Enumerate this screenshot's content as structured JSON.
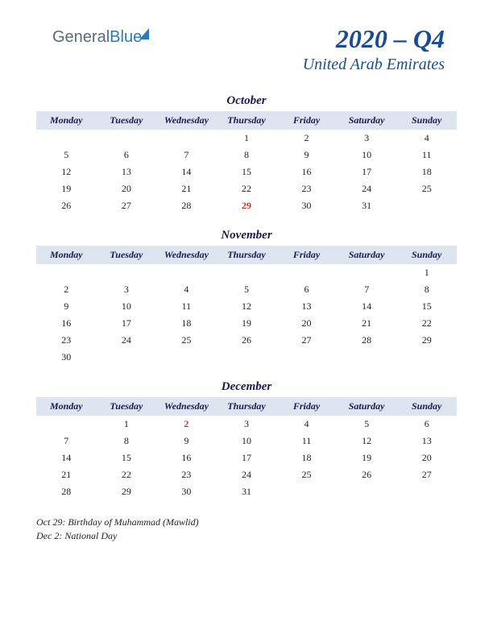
{
  "logo": {
    "part1": "General",
    "part2": "Blue"
  },
  "header": {
    "title": "2020 – Q4",
    "subtitle": "United Arab Emirates"
  },
  "colors": {
    "header_text": "#1a4d8f",
    "th_bg": "#dde5f0",
    "holiday": "#c0392b",
    "body_text": "#222222",
    "background": "#ffffff"
  },
  "weekdays": [
    "Monday",
    "Tuesday",
    "Wednesday",
    "Thursday",
    "Friday",
    "Saturday",
    "Sunday"
  ],
  "months": [
    {
      "name": "October",
      "weeks": [
        [
          "",
          "",
          "",
          "1",
          "2",
          "3",
          "4"
        ],
        [
          "5",
          "6",
          "7",
          "8",
          "9",
          "10",
          "11"
        ],
        [
          "12",
          "13",
          "14",
          "15",
          "16",
          "17",
          "18"
        ],
        [
          "19",
          "20",
          "21",
          "22",
          "23",
          "24",
          "25"
        ],
        [
          "26",
          "27",
          "28",
          "29",
          "30",
          "31",
          ""
        ]
      ],
      "holidays": [
        "29"
      ]
    },
    {
      "name": "November",
      "weeks": [
        [
          "",
          "",
          "",
          "",
          "",
          "",
          "1"
        ],
        [
          "2",
          "3",
          "4",
          "5",
          "6",
          "7",
          "8"
        ],
        [
          "9",
          "10",
          "11",
          "12",
          "13",
          "14",
          "15"
        ],
        [
          "16",
          "17",
          "18",
          "19",
          "20",
          "21",
          "22"
        ],
        [
          "23",
          "24",
          "25",
          "26",
          "27",
          "28",
          "29"
        ],
        [
          "30",
          "",
          "",
          "",
          "",
          "",
          ""
        ]
      ],
      "holidays": []
    },
    {
      "name": "December",
      "weeks": [
        [
          "",
          "1",
          "2",
          "3",
          "4",
          "5",
          "6"
        ],
        [
          "7",
          "8",
          "9",
          "10",
          "11",
          "12",
          "13"
        ],
        [
          "14",
          "15",
          "16",
          "17",
          "18",
          "19",
          "20"
        ],
        [
          "21",
          "22",
          "23",
          "24",
          "25",
          "26",
          "27"
        ],
        [
          "28",
          "29",
          "30",
          "31",
          "",
          "",
          ""
        ]
      ],
      "holidays": [
        "2"
      ]
    }
  ],
  "notes": [
    "Oct 29: Birthday of Muhammad (Mawlid)",
    "Dec 2: National Day"
  ]
}
